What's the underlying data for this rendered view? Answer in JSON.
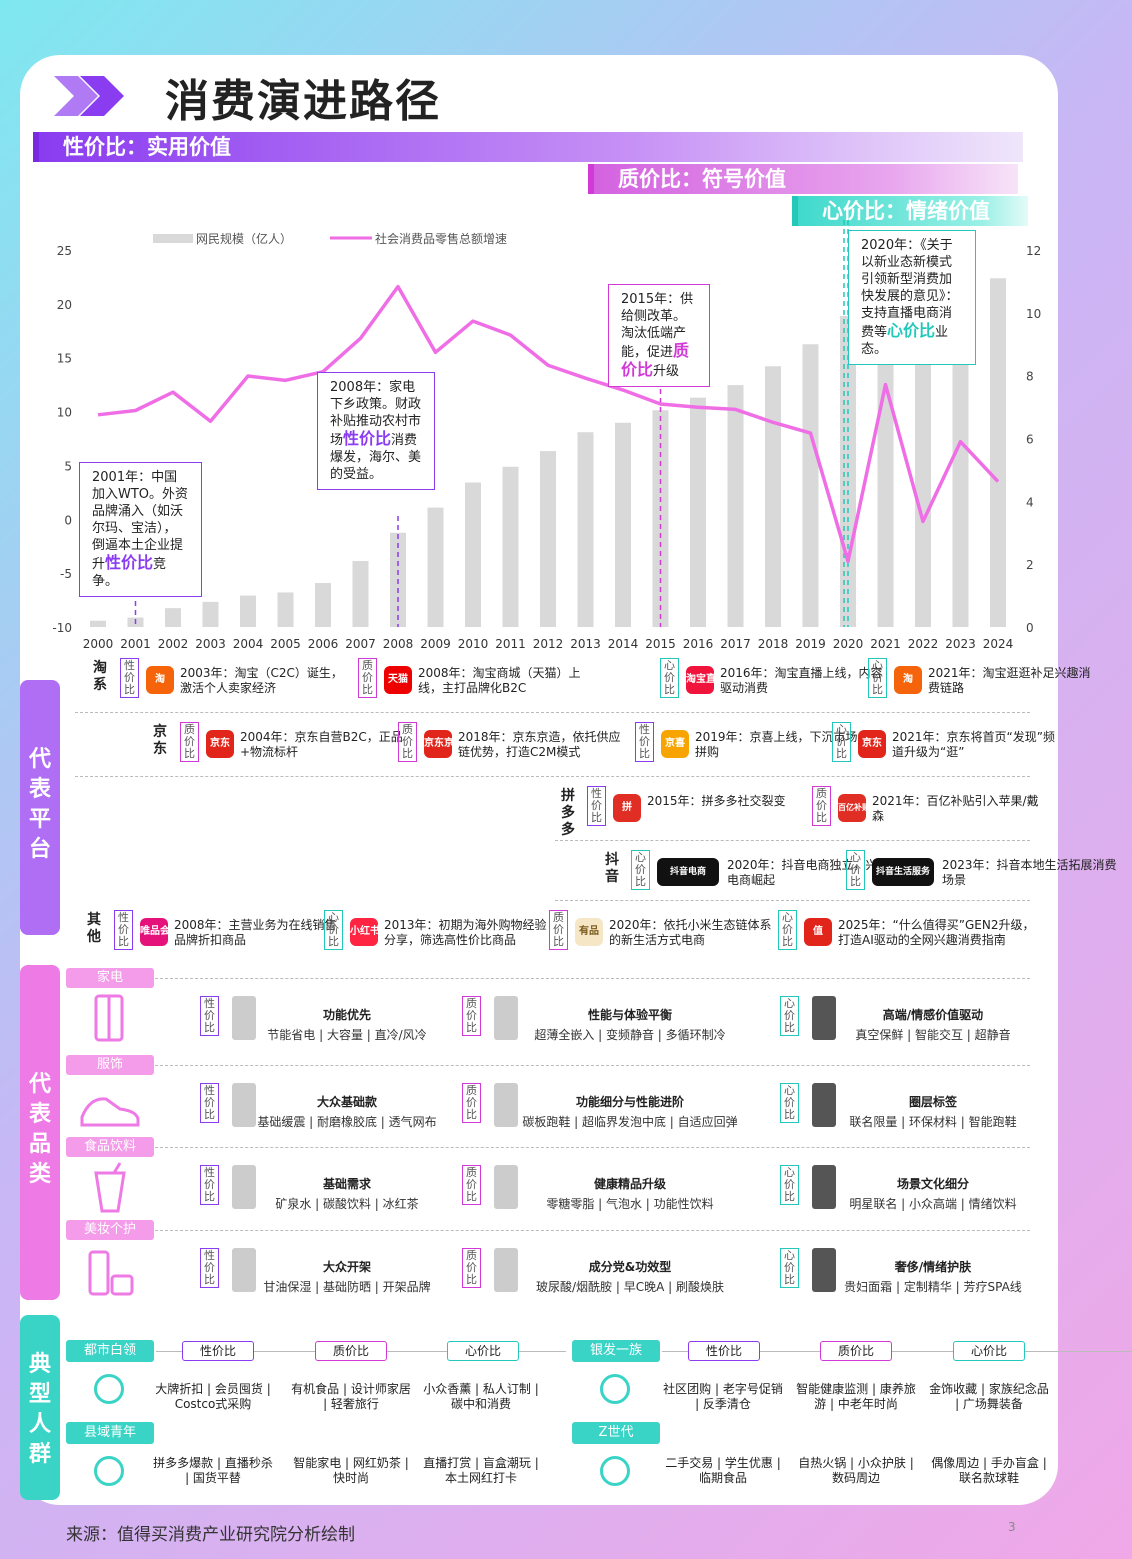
{
  "title": "消费演进路径",
  "bands": [
    "性价比：实用价值",
    "质价比：符号价值",
    "心价比：情绪价值"
  ],
  "chart_data": {
    "type": "bar+line",
    "legend": [
      "网民规模（亿人）",
      "社会消费品零售总额增速"
    ],
    "x": [
      "2000",
      "2001",
      "2002",
      "2003",
      "2004",
      "2005",
      "2006",
      "2007",
      "2008",
      "2009",
      "2010",
      "2011",
      "2012",
      "2013",
      "2014",
      "2015",
      "2016",
      "2017",
      "2018",
      "2019",
      "2020",
      "2021",
      "2022",
      "2023",
      "2024"
    ],
    "bars": [
      0.2,
      0.3,
      0.6,
      0.8,
      1.0,
      1.1,
      1.4,
      2.1,
      3.0,
      3.8,
      4.6,
      5.1,
      5.6,
      6.2,
      6.5,
      6.9,
      7.3,
      7.7,
      8.3,
      9.0,
      9.9,
      10.3,
      10.7,
      10.9,
      11.1
    ],
    "line": [
      9.7,
      10.1,
      11.8,
      9.1,
      13.3,
      12.9,
      13.7,
      16.8,
      21.6,
      15.5,
      18.4,
      17.1,
      14.3,
      13.1,
      12.0,
      10.7,
      10.4,
      10.2,
      9.0,
      8.0,
      -3.9,
      12.5,
      -0.2,
      7.2,
      3.5
    ],
    "yleft": [
      "25",
      "20",
      "15",
      "10",
      "5",
      "0",
      "-5",
      "-10"
    ],
    "yright": [
      "12",
      "10",
      "8",
      "6",
      "4",
      "2",
      "0"
    ],
    "ylim_left": [
      -10,
      25
    ],
    "ylim_right": [
      0,
      12
    ]
  },
  "annotations": [
    {
      "pre": "2001年：中国加入WTO。外资品牌涌入（如沃尔玛、宝洁），倒逼本土企业提升",
      "hl": "性价比",
      "post": "竞争。"
    },
    {
      "pre": "2008年：家电下乡政策。财政补贴推动农村市场",
      "hl": "性价比",
      "post": "消费爆发，海尔、美的受益。"
    },
    {
      "pre": "2015年：供给侧改革。淘汰低端产能，促进",
      "hl": "质价比",
      "post": "升级"
    },
    {
      "pre": "2020年：《关于以新业态新模式引领新型消费加快发展的意见》：支持直播电商消费等",
      "hl": "心价比",
      "post": "业态。"
    }
  ],
  "side": {
    "platform": "代表平台",
    "category": "代表品类",
    "people": "典型人群"
  },
  "tags": {
    "x": "性价比",
    "q": "质价比",
    "h": "心价比"
  },
  "platforms": {
    "taobao": {
      "name": "淘系",
      "items": [
        "2003年：淘宝（C2C）诞生，激活个人卖家经济",
        "2008年：淘宝商城（天猫）上线，主打品牌化B2C",
        "2016年：淘宝直播上线，内容驱动消费",
        "2021年：淘宝逛逛补足兴趣消费链路"
      ],
      "logos": [
        "淘",
        "天猫",
        "淘宝直播",
        "淘"
      ]
    },
    "jd": {
      "name": "京东",
      "items": [
        "2004年：京东自营B2C，正品+物流标杆",
        "2018年：京东京造，依托供应链优势，打造C2M模式",
        "2019年：京喜上线，下沉市场拼购",
        "2021年：京东将首页“发现”频道升级为“逛”"
      ],
      "logos": [
        "京东",
        "京东京造",
        "京喜",
        "京东"
      ]
    },
    "pdd": {
      "name": "拼多多",
      "items": [
        "2015年：拼多多社交裂变",
        "2021年：百亿补贴引入苹果/戴森"
      ],
      "logos": [
        "拼",
        "百亿补贴"
      ]
    },
    "douyin": {
      "name": "抖音",
      "items": [
        "2020年：抖音电商独立，兴趣电商崛起",
        "2023年：抖音本地生活拓展消费场景"
      ],
      "logos": [
        "抖音电商",
        "抖音生活服务"
      ]
    },
    "other": {
      "name": "其他",
      "items": [
        "2008年：主营业务为在线销售品牌折扣商品",
        "2013年：初期为海外购物经验分享，筛选高性价比商品",
        "2020年：依托小米生态链体系的新生活方式电商",
        "2025年：“什么值得买”GEN2升级，打造AI驱动的全网兴趣消费指南"
      ],
      "logos": [
        "唯品会",
        "小红书",
        "有品",
        "值"
      ]
    }
  },
  "categories": [
    {
      "name": "家电",
      "items": [
        {
          "t": "功能优先",
          "d": "节能省电 | 大容量 | 直冷/风冷"
        },
        {
          "t": "性能与体验平衡",
          "d": "超薄全嵌入 | 变频静音 | 多循环制冷"
        },
        {
          "t": "高端/情感价值驱动",
          "d": "真空保鲜 | 智能交互 | 超静音"
        }
      ]
    },
    {
      "name": "服饰",
      "items": [
        {
          "t": "大众基础款",
          "d": "基础缓震 | 耐磨橡胶底 | 透气网布"
        },
        {
          "t": "功能细分与性能进阶",
          "d": "碳板跑鞋 | 超临界发泡中底 | 自适应回弹"
        },
        {
          "t": "圈层标签",
          "d": "联名限量 | 环保材料 | 智能跑鞋"
        }
      ]
    },
    {
      "name": "食品饮料",
      "items": [
        {
          "t": "基础需求",
          "d": "矿泉水 | 碳酸饮料 | 冰红茶"
        },
        {
          "t": "健康精品升级",
          "d": "零糖零脂 | 气泡水 | 功能性饮料"
        },
        {
          "t": "场景文化细分",
          "d": "明星联名 | 小众高端 | 情绪饮料"
        }
      ]
    },
    {
      "name": "美妆个护",
      "items": [
        {
          "t": "大众开架",
          "d": "甘油保湿 | 基础防晒 | 开架品牌"
        },
        {
          "t": "成分党&功效型",
          "d": "玻尿酸/烟酰胺 | 早C晚A | 刷酸焕肤"
        },
        {
          "t": "奢侈/情绪护肤",
          "d": "贵妇面霜 | 定制精华 | 芳疗SPA线"
        }
      ]
    }
  ],
  "people": [
    {
      "name": "都市白领",
      "items": [
        "大牌折扣 | 会员囤货 | Costco式采购",
        "有机食品 | 设计师家居 | 轻奢旅行",
        "小众香薰 | 私人订制 | 碳中和消费"
      ]
    },
    {
      "name": "银发一族",
      "items": [
        "社区团购 | 老字号促销 | 反季清仓",
        "智能健康监测 | 康养旅游 | 中老年时尚",
        "金饰收藏 | 家族纪念品 | 广场舞装备"
      ]
    },
    {
      "name": "县域青年",
      "items": [
        "拼多多爆款 | 直播秒杀 | 国货平替",
        "智能家电 | 网红奶茶 | 快时尚",
        "直播打赏 | 盲盒潮玩 | 本土网红打卡"
      ]
    },
    {
      "name": "Z世代",
      "items": [
        "二手交易 | 学生优惠 | 临期食品",
        "自热火锅 | 小众护肤 | 数码周边",
        "偶像周边 | 手办盲盒 | 联名款球鞋"
      ]
    }
  ],
  "source": "来源：值得买消费产业研究院分析绘制",
  "page": "3"
}
